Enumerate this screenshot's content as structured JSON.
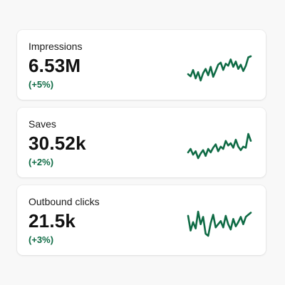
{
  "theme": {
    "accent": "#0f6b45",
    "card_background": "#ffffff",
    "page_background": "#f8f8f8"
  },
  "metrics": [
    {
      "label": "Impressions",
      "value": "6.53M",
      "change": "(+5%)",
      "trend": [
        52,
        48,
        60,
        44,
        56,
        40,
        54,
        62,
        50,
        66,
        47,
        58,
        70,
        74,
        60,
        72,
        68,
        80,
        66,
        76,
        62,
        70,
        58,
        68,
        84,
        86
      ]
    },
    {
      "label": "Saves",
      "value": "30.52k",
      "change": "(+2%)",
      "trend": [
        50,
        56,
        46,
        52,
        40,
        48,
        54,
        44,
        56,
        50,
        58,
        64,
        52,
        60,
        56,
        70,
        62,
        66,
        58,
        72,
        60,
        54,
        60,
        58,
        82,
        70
      ]
    },
    {
      "label": "Outbound clicks",
      "value": "21.5k",
      "change": "(+3%)",
      "trend": [
        74,
        46,
        62,
        50,
        82,
        58,
        72,
        40,
        36,
        60,
        76,
        52,
        58,
        64,
        52,
        74,
        58,
        48,
        68,
        54,
        62,
        72,
        58,
        72,
        76,
        80
      ]
    }
  ]
}
